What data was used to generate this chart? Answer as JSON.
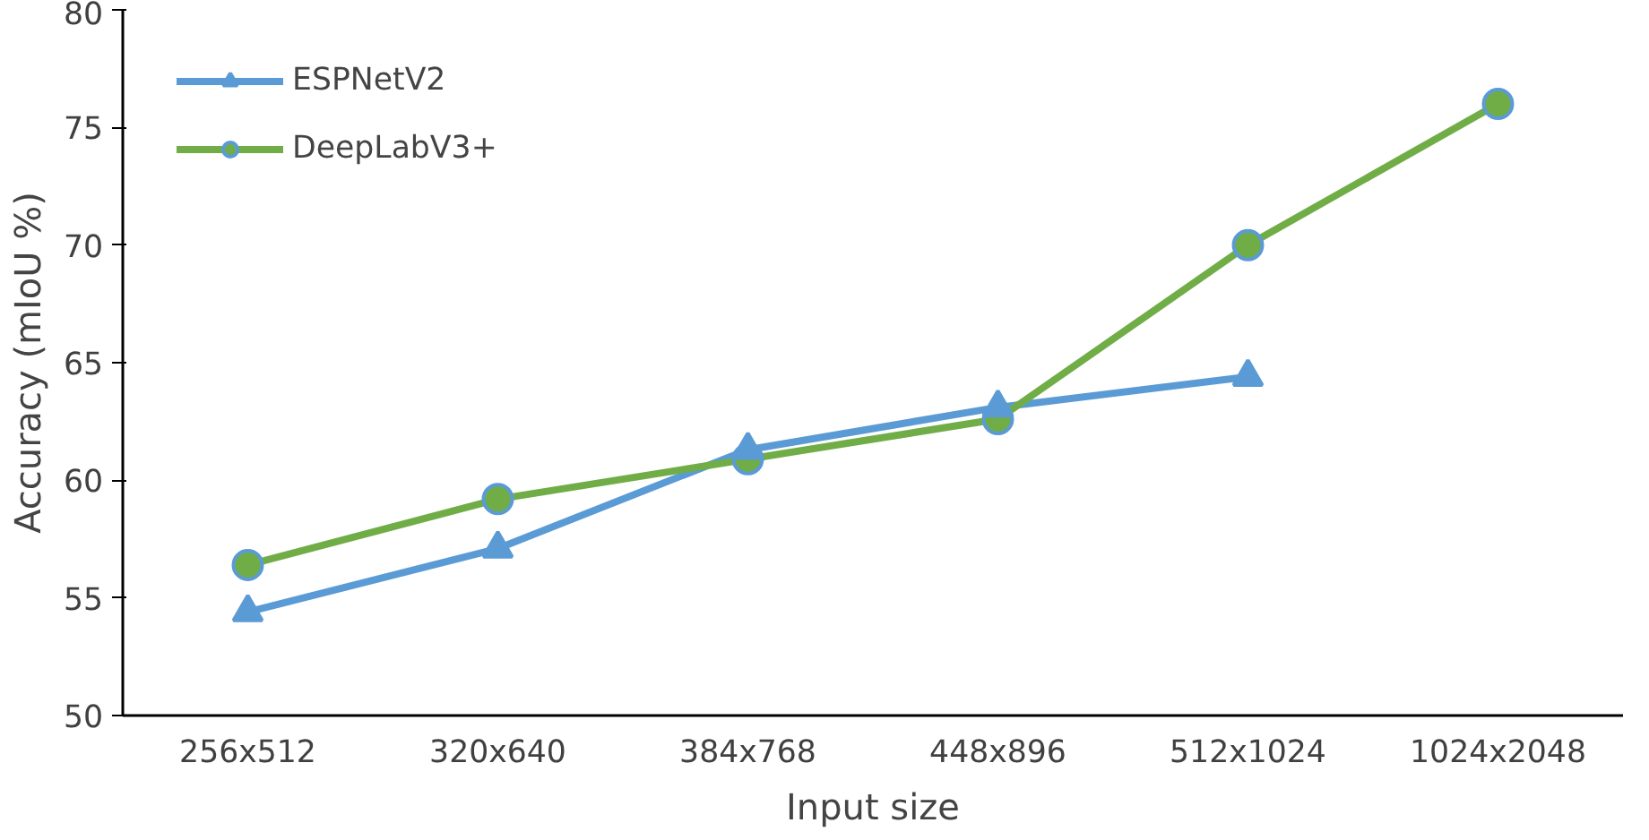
{
  "chart_data": {
    "type": "line",
    "xlabel": "Input size",
    "ylabel": "Accuracy (mIoU %)",
    "categories": [
      "256x512",
      "320x640",
      "384x768",
      "448x896",
      "512x1024",
      "1024x2048"
    ],
    "ylim": [
      50,
      80
    ],
    "yticks": [
      50,
      55,
      60,
      65,
      70,
      75,
      80
    ],
    "grid": false,
    "legend": "top left",
    "line_style": "solid",
    "series": [
      {
        "name": "ESPNetV2",
        "color": "#5b9bd5",
        "marker": "triangle",
        "values": [
          54.4,
          57.1,
          61.3,
          63.1,
          64.4,
          null
        ]
      },
      {
        "name": "DeepLabV3+",
        "color": "#70ad47",
        "marker": "circle",
        "values": [
          56.4,
          59.2,
          60.9,
          62.6,
          70.0,
          76.0
        ]
      }
    ]
  }
}
